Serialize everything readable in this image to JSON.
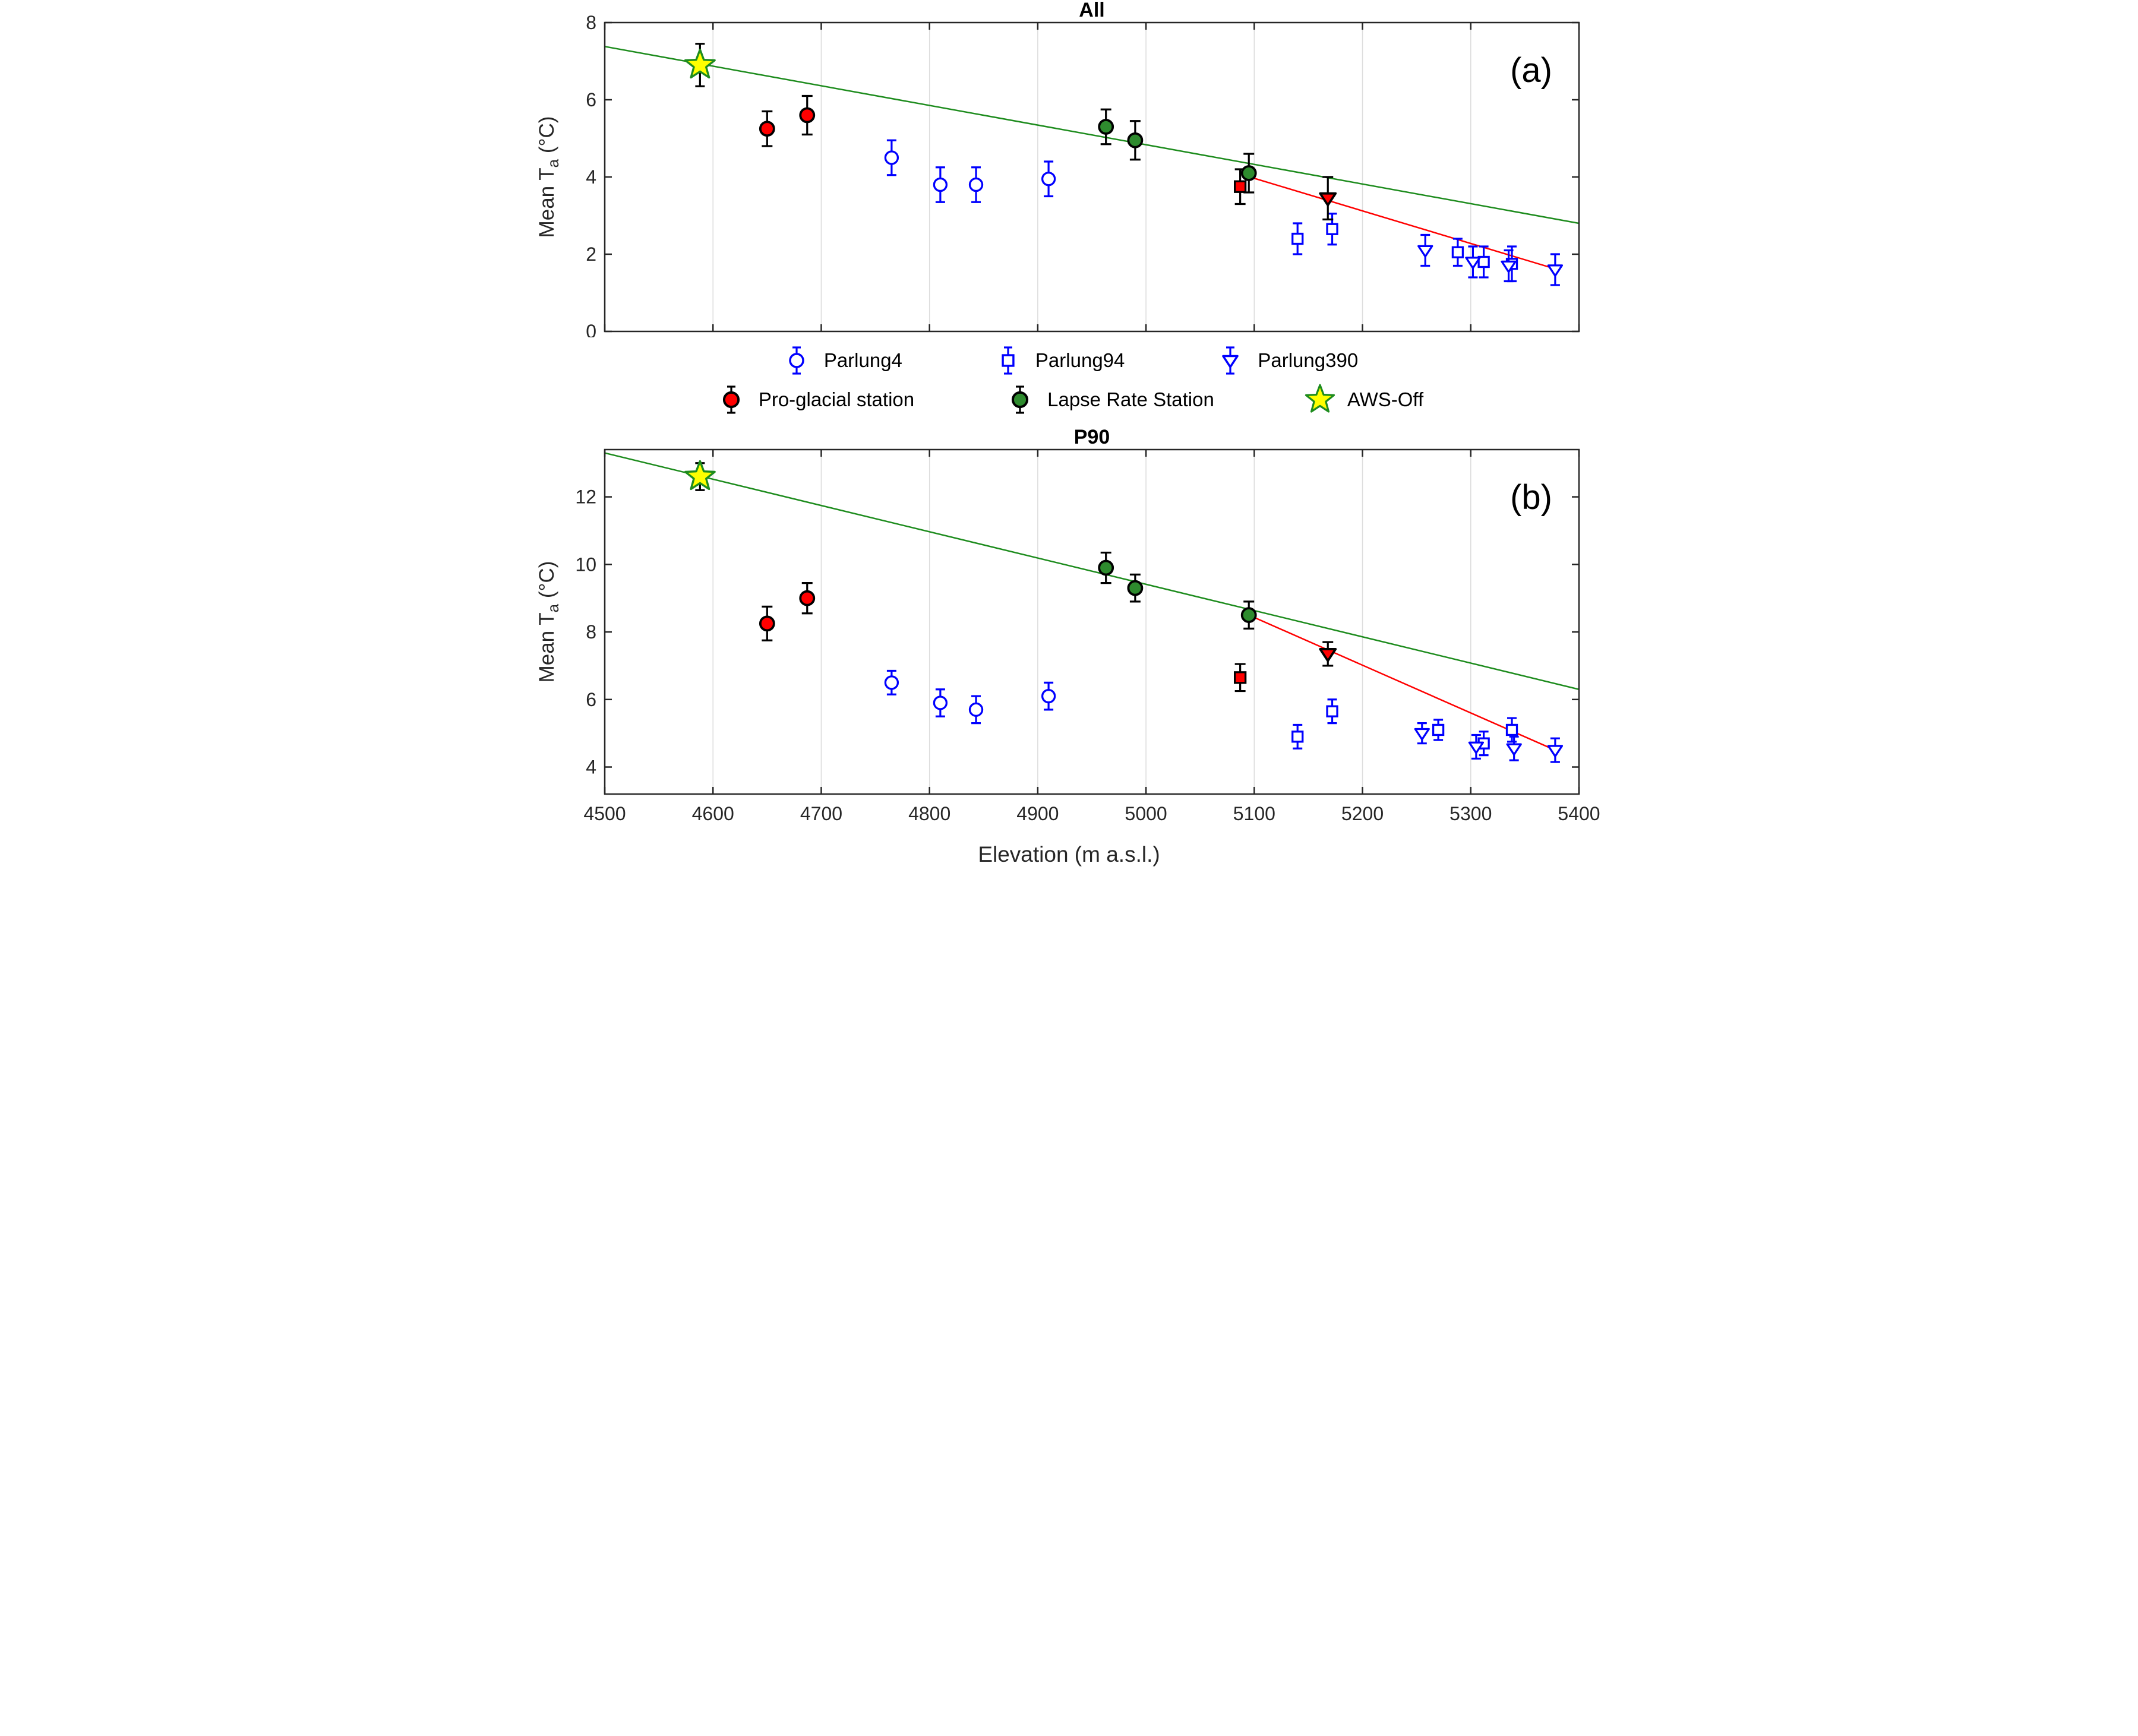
{
  "figure": {
    "xlabel": "Elevation (m a.s.l.)",
    "ylabel": {
      "main": "Mean T",
      "sub": "a",
      "unit": " (°C)"
    }
  },
  "colors": {
    "blue": "#0000FF",
    "red": "#FF0000",
    "green_marker": "#2E8B2E",
    "green_line": "#1E8C1E",
    "star_yellow": "#FFFF00",
    "axis": "#262626",
    "grid": "#DCDCDC"
  },
  "legend": {
    "rows": [
      [
        {
          "label": "Parlung4",
          "marker": "open-circle",
          "fill": "#FFFFFF",
          "edge": "#0000FF",
          "whisker": "#0000FF"
        },
        {
          "label": "Parlung94",
          "marker": "open-square",
          "fill": "#FFFFFF",
          "edge": "#0000FF",
          "whisker": "#0000FF"
        },
        {
          "label": "Parlung390",
          "marker": "open-triangle-down",
          "fill": "#FFFFFF",
          "edge": "#0000FF",
          "whisker": "#0000FF"
        }
      ],
      [
        {
          "label": "Pro-glacial station",
          "marker": "filled-circle",
          "fill": "#FF0000",
          "edge": "#000000",
          "whisker": "#000000"
        },
        {
          "label": "Lapse Rate Station",
          "marker": "filled-circle",
          "fill": "#2E8B2E",
          "edge": "#000000",
          "whisker": "#000000"
        },
        {
          "label": "AWS-Off",
          "marker": "star",
          "fill": "#FFFF00",
          "edge": "#1E8C1E",
          "whisker": null
        }
      ]
    ]
  },
  "chart_data": [
    {
      "type": "scatter",
      "title": "All",
      "panel_label": "(a)",
      "xlabel": "Elevation (m a.s.l.)",
      "ylabel": "Mean Ta (°C)",
      "xlim": [
        4500,
        5400
      ],
      "ylim": [
        0,
        8
      ],
      "x_ticks": [
        4500,
        4600,
        4700,
        4800,
        4900,
        5000,
        5100,
        5200,
        5300,
        5400
      ],
      "y_ticks": [
        0,
        2,
        4,
        6,
        8
      ],
      "show_x_tick_labels": false,
      "grid": "vertical",
      "legend_position": "below",
      "lines": [
        {
          "name": "green-regression-line",
          "color": "#1E8C1E",
          "width": 2.5,
          "x": [
            4500,
            5400
          ],
          "y": [
            7.38,
            2.8
          ]
        },
        {
          "name": "red-regression-line",
          "color": "#FF0000",
          "width": 2.5,
          "x": [
            5090,
            5378
          ],
          "y": [
            4.05,
            1.62
          ]
        }
      ],
      "series": [
        {
          "name": "Parlung4",
          "marker": "open-circle",
          "fill": "#FFFFFF",
          "edge": "#0000FF",
          "err_color": "#0000FF",
          "points": [
            {
              "x": 4765,
              "y": 4.5,
              "err": 0.45
            },
            {
              "x": 4810,
              "y": 3.8,
              "err": 0.45
            },
            {
              "x": 4843,
              "y": 3.8,
              "err": 0.45
            },
            {
              "x": 4910,
              "y": 3.95,
              "err": 0.45
            }
          ]
        },
        {
          "name": "Parlung94",
          "marker": "open-square",
          "fill": "#FFFFFF",
          "edge": "#0000FF",
          "err_color": "#0000FF",
          "points": [
            {
              "x": 5140,
              "y": 2.4,
              "err": 0.4
            },
            {
              "x": 5172,
              "y": 2.65,
              "err": 0.4
            },
            {
              "x": 5288,
              "y": 2.05,
              "err": 0.35
            },
            {
              "x": 5312,
              "y": 1.8,
              "err": 0.4
            },
            {
              "x": 5338,
              "y": 1.75,
              "err": 0.45
            }
          ]
        },
        {
          "name": "Parlung390",
          "marker": "open-triangle-down",
          "fill": "#FFFFFF",
          "edge": "#0000FF",
          "err_color": "#0000FF",
          "points": [
            {
              "x": 5258,
              "y": 2.1,
              "err": 0.4
            },
            {
              "x": 5302,
              "y": 1.8,
              "err": 0.4
            },
            {
              "x": 5335,
              "y": 1.7,
              "err": 0.4
            },
            {
              "x": 5378,
              "y": 1.6,
              "err": 0.4
            }
          ]
        },
        {
          "name": "Pro-glacial station",
          "marker": "filled-circle",
          "fill": "#FF0000",
          "edge": "#000000",
          "err_color": "#000000",
          "points": [
            {
              "x": 4650,
              "y": 5.25,
              "err": 0.45
            },
            {
              "x": 4687,
              "y": 5.6,
              "err": 0.5
            }
          ]
        },
        {
          "name": "On-glacier red square",
          "marker": "filled-square",
          "fill": "#FF0000",
          "edge": "#000000",
          "err_color": "#000000",
          "points": [
            {
              "x": 5087,
              "y": 3.75,
              "err": 0.45
            }
          ]
        },
        {
          "name": "On-glacier red triangle",
          "marker": "filled-triangle-down",
          "fill": "#FF0000",
          "edge": "#000000",
          "err_color": "#000000",
          "points": [
            {
              "x": 5168,
              "y": 3.45,
              "err": 0.55
            }
          ]
        },
        {
          "name": "Lapse Rate Station",
          "marker": "filled-circle",
          "fill": "#2E8B2E",
          "edge": "#000000",
          "err_color": "#000000",
          "points": [
            {
              "x": 4963,
              "y": 5.3,
              "err": 0.45
            },
            {
              "x": 4990,
              "y": 4.95,
              "err": 0.5
            },
            {
              "x": 5095,
              "y": 4.1,
              "err": 0.5
            }
          ]
        },
        {
          "name": "AWS-Off",
          "marker": "star",
          "fill": "#FFFF00",
          "edge": "#1E8C1E",
          "err_color": "#000000",
          "points": [
            {
              "x": 4588,
              "y": 6.9,
              "err": 0.55
            }
          ]
        }
      ]
    },
    {
      "type": "scatter",
      "title": "P90",
      "panel_label": "(b)",
      "xlabel": "Elevation (m a.s.l.)",
      "ylabel": "Mean Ta (°C)",
      "xlim": [
        4500,
        5400
      ],
      "ylim": [
        3.2,
        13.4
      ],
      "x_ticks": [
        4500,
        4600,
        4700,
        4800,
        4900,
        5000,
        5100,
        5200,
        5300,
        5400
      ],
      "y_ticks": [
        4,
        6,
        8,
        10,
        12
      ],
      "show_x_tick_labels": true,
      "grid": "vertical",
      "lines": [
        {
          "name": "green-regression-line",
          "color": "#1E8C1E",
          "width": 2.5,
          "x": [
            4500,
            5400
          ],
          "y": [
            13.3,
            6.3
          ]
        },
        {
          "name": "red-regression-line",
          "color": "#FF0000",
          "width": 2.5,
          "x": [
            5095,
            5378
          ],
          "y": [
            8.5,
            4.5
          ]
        }
      ],
      "series": [
        {
          "name": "Parlung4",
          "marker": "open-circle",
          "fill": "#FFFFFF",
          "edge": "#0000FF",
          "err_color": "#0000FF",
          "points": [
            {
              "x": 4765,
              "y": 6.5,
              "err": 0.35
            },
            {
              "x": 4810,
              "y": 5.9,
              "err": 0.4
            },
            {
              "x": 4843,
              "y": 5.7,
              "err": 0.4
            },
            {
              "x": 4910,
              "y": 6.1,
              "err": 0.4
            }
          ]
        },
        {
          "name": "Parlung94",
          "marker": "open-square",
          "fill": "#FFFFFF",
          "edge": "#0000FF",
          "err_color": "#0000FF",
          "points": [
            {
              "x": 5140,
              "y": 4.9,
              "err": 0.35
            },
            {
              "x": 5172,
              "y": 5.65,
              "err": 0.35
            },
            {
              "x": 5270,
              "y": 5.1,
              "err": 0.3
            },
            {
              "x": 5312,
              "y": 4.7,
              "err": 0.35
            },
            {
              "x": 5338,
              "y": 5.1,
              "err": 0.35
            }
          ]
        },
        {
          "name": "Parlung390",
          "marker": "open-triangle-down",
          "fill": "#FFFFFF",
          "edge": "#0000FF",
          "err_color": "#0000FF",
          "points": [
            {
              "x": 5255,
              "y": 5.0,
              "err": 0.3
            },
            {
              "x": 5305,
              "y": 4.6,
              "err": 0.35
            },
            {
              "x": 5340,
              "y": 4.55,
              "err": 0.35
            },
            {
              "x": 5378,
              "y": 4.5,
              "err": 0.35
            }
          ]
        },
        {
          "name": "Pro-glacial station",
          "marker": "filled-circle",
          "fill": "#FF0000",
          "edge": "#000000",
          "err_color": "#000000",
          "points": [
            {
              "x": 4650,
              "y": 8.25,
              "err": 0.5
            },
            {
              "x": 4687,
              "y": 9.0,
              "err": 0.45
            }
          ]
        },
        {
          "name": "On-glacier red square",
          "marker": "filled-square",
          "fill": "#FF0000",
          "edge": "#000000",
          "err_color": "#000000",
          "points": [
            {
              "x": 5087,
              "y": 6.65,
              "err": 0.4
            }
          ]
        },
        {
          "name": "On-glacier red triangle",
          "marker": "filled-triangle-down",
          "fill": "#FF0000",
          "edge": "#000000",
          "err_color": "#000000",
          "points": [
            {
              "x": 5168,
              "y": 7.35,
              "err": 0.35
            }
          ]
        },
        {
          "name": "Lapse Rate Station",
          "marker": "filled-circle",
          "fill": "#2E8B2E",
          "edge": "#000000",
          "err_color": "#000000",
          "points": [
            {
              "x": 4963,
              "y": 9.9,
              "err": 0.45
            },
            {
              "x": 4990,
              "y": 9.3,
              "err": 0.4
            },
            {
              "x": 5095,
              "y": 8.5,
              "err": 0.4
            }
          ]
        },
        {
          "name": "AWS-Off",
          "marker": "star",
          "fill": "#FFFF00",
          "edge": "#1E8C1E",
          "err_color": "#000000",
          "points": [
            {
              "x": 4588,
              "y": 12.6,
              "err": 0.4
            }
          ]
        }
      ]
    }
  ]
}
